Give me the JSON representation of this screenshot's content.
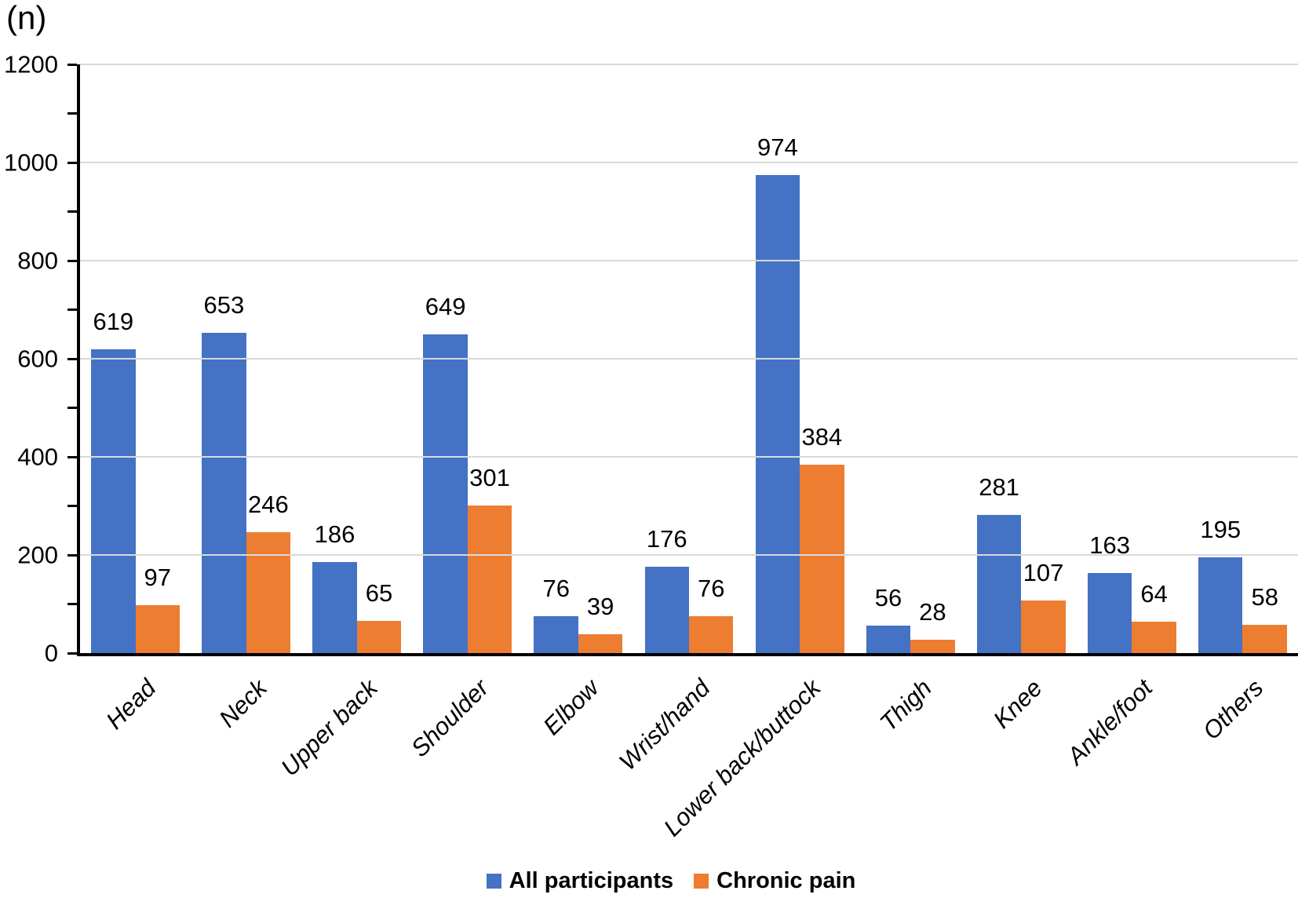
{
  "chart_data": {
    "type": "bar",
    "title": "",
    "ylabel": "(n)",
    "xlabel": "",
    "categories": [
      "Head",
      "Neck",
      "Upper back",
      "Shoulder",
      "Elbow",
      "Wrist/hand",
      "Lower back/buttock",
      "Thigh",
      "Knee",
      "Ankle/foot",
      "Others"
    ],
    "series": [
      {
        "name": "All participants",
        "color": "#4472C4",
        "values": [
          619,
          653,
          186,
          649,
          76,
          176,
          974,
          56,
          281,
          163,
          195
        ]
      },
      {
        "name": "Chronic pain",
        "color": "#ED7D31",
        "values": [
          97,
          246,
          65,
          301,
          39,
          76,
          384,
          28,
          107,
          64,
          58
        ]
      }
    ],
    "ylim": [
      0,
      1200
    ],
    "y_major_ticks": [
      0,
      200,
      400,
      600,
      800,
      1000,
      1200
    ],
    "y_minor_step": 100,
    "grid": "horizontal-major",
    "value_labels": true,
    "legend_position": "bottom",
    "category_label_style": "italic, rotated 45deg"
  },
  "colors": {
    "background": "#FFFFFF",
    "axis": "#000000",
    "gridline": "#D9D9D9",
    "text": "#000000"
  }
}
